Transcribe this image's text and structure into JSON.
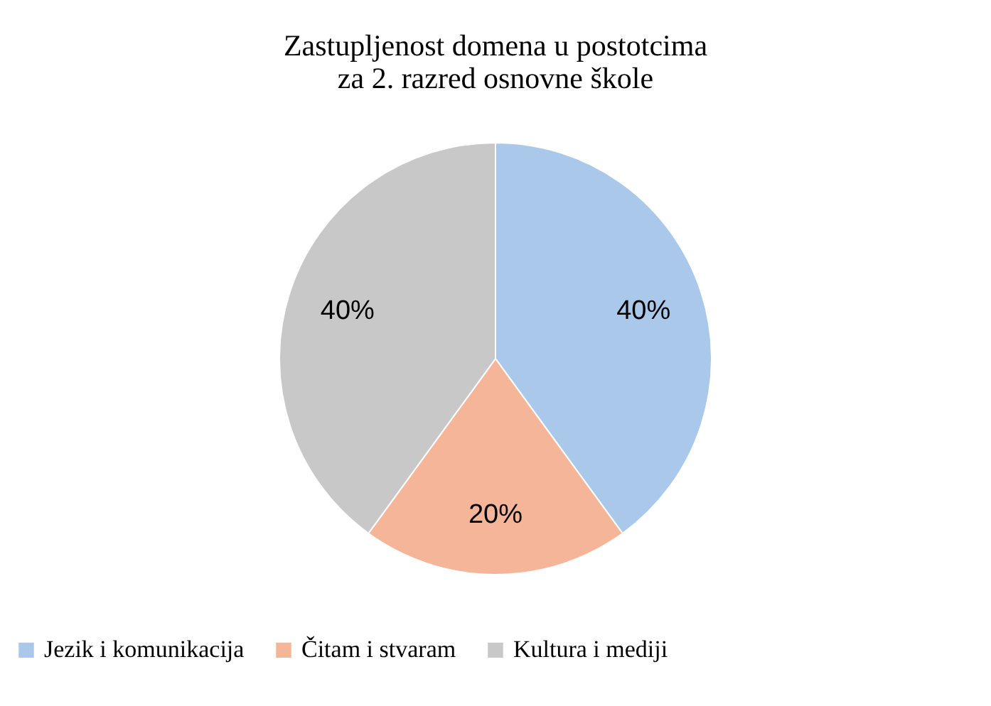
{
  "chart_data": {
    "type": "pie",
    "title": [
      "Zastupljenost  domena u postotcima",
      "za 2. razred osnovne škole"
    ],
    "categories": [
      "Jezik i komunikacija",
      "Čitam i stvaram",
      "Kultura i mediji"
    ],
    "values": [
      40,
      20,
      40
    ],
    "value_labels": [
      "40%",
      "20%",
      "40%"
    ],
    "colors": [
      "#a9c8ea",
      "#f5b598",
      "#c8c8c8"
    ],
    "legend": "bottom"
  }
}
